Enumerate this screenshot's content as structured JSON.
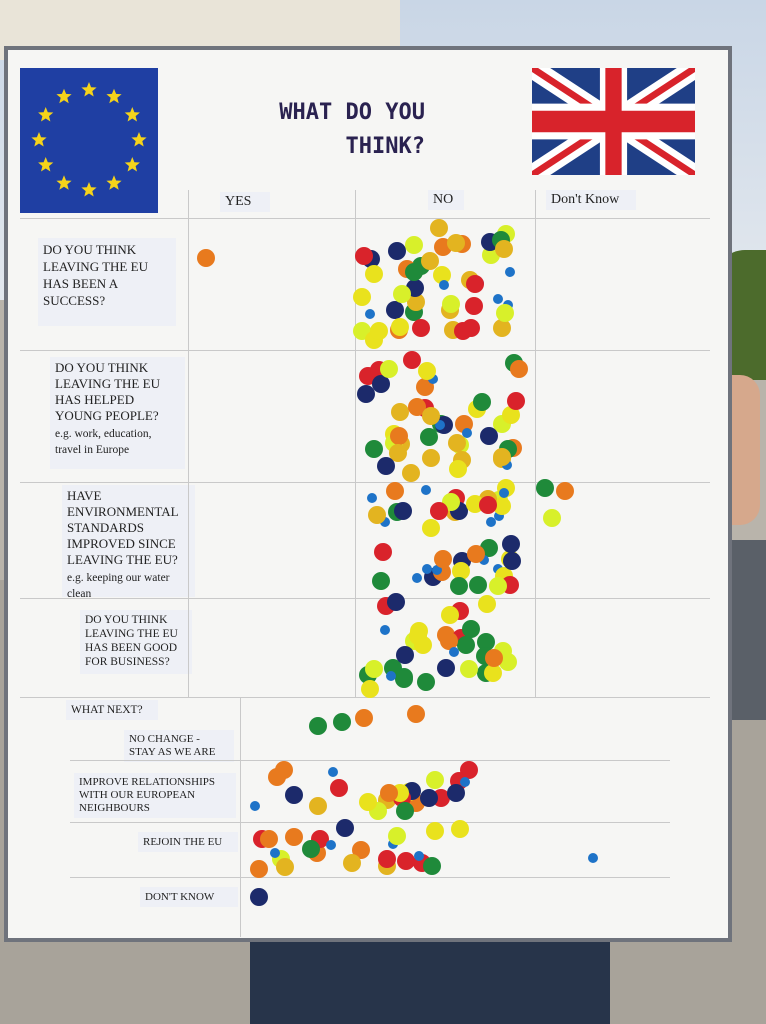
{
  "title": "WHAT DO YOU THINK?",
  "columns": [
    "YES",
    "NO",
    "Don't Know"
  ],
  "questions": [
    {
      "text": "DO YOU THINK LEAVING THE EU HAS BEEN A SUCCESS?",
      "note": null
    },
    {
      "text": "DO YOU THINK LEAVING THE EU HAS HELPED YOUNG PEOPLE?",
      "note": "e.g. work, education, travel in Europe"
    },
    {
      "text": "HAVE ENVIRONMENTAL STANDARDS IMPROVED SINCE LEAVING THE EU?",
      "note": "e.g. keeping our water clean"
    },
    {
      "text": "DO YOU THINK LEAVING THE EU HAS BEEN GOOD FOR BUSINESS?",
      "note": null
    }
  ],
  "what_next": {
    "heading": "WHAT NEXT?",
    "options": [
      "NO CHANGE - STAY AS WE ARE",
      "IMPROVE RELATIONSHIPS WITH OUR EUROPEAN NEIGHBOURS",
      "REJOIN THE EU",
      "DON'T KNOW"
    ]
  }
}
